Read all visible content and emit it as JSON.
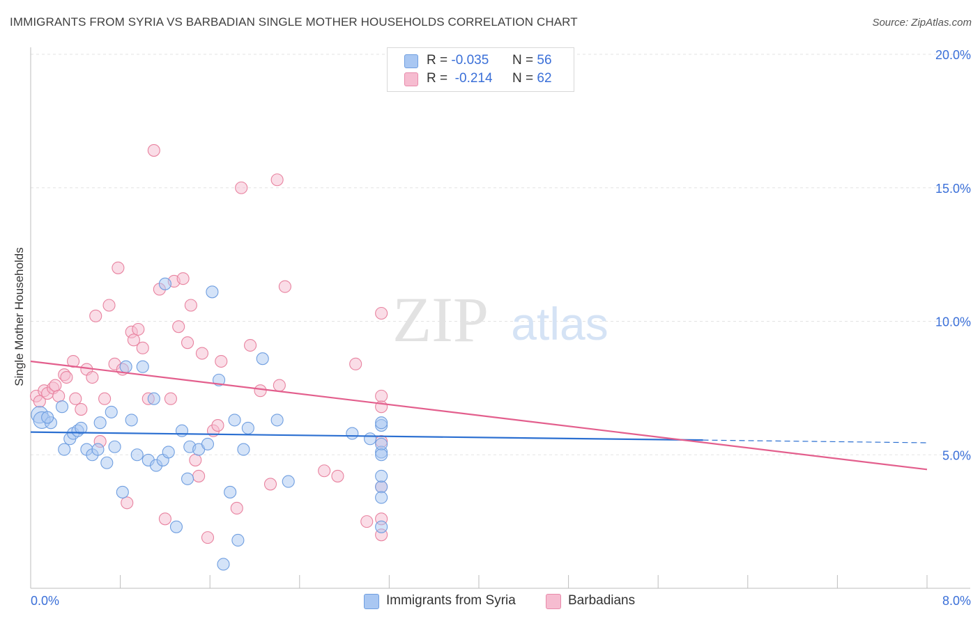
{
  "title": "IMMIGRANTS FROM SYRIA VS BARBADIAN SINGLE MOTHER HOUSEHOLDS CORRELATION CHART",
  "source": "Source: ZipAtlas.com",
  "watermark": {
    "zip": "ZIP",
    "atlas": "atlas"
  },
  "legend": {
    "rows": [
      {
        "r_label": "R =",
        "r_value": "-0.035",
        "n_label": "N =",
        "n_value": "56",
        "color": "#a9c7f2",
        "stroke": "#6f9ee0"
      },
      {
        "r_label": "R =",
        "r_value": "-0.214",
        "n_label": "N =",
        "n_value": "62",
        "color": "#f6bcd0",
        "stroke": "#e88aaa"
      }
    ]
  },
  "colors": {
    "syria": "#6f9ee0",
    "syria_fill": "#a9c7f2",
    "barb": "#e8829f",
    "barb_fill": "#f6bcd0",
    "syria_line": "#2b6fd1",
    "barb_line": "#e35f8d",
    "tick_text": "#3a6fd8"
  },
  "chart_data": {
    "type": "scatter",
    "title": "IMMIGRANTS FROM SYRIA VS BARBADIAN SINGLE MOTHER HOUSEHOLDS CORRELATION CHART",
    "xlabel": "",
    "ylabel": "Single Mother Households",
    "xlim": [
      0,
      8
    ],
    "ylim": [
      0,
      20
    ],
    "x_tick_labels": [
      "0.0%",
      "8.0%"
    ],
    "y_ticks": [
      5,
      10,
      15,
      20
    ],
    "y_tick_labels": [
      "5.0%",
      "10.0%",
      "15.0%",
      "20.0%"
    ],
    "grid": true,
    "series": [
      {
        "name": "Immigrants from Syria",
        "trend": {
          "x": [
            0,
            6.0,
            8.0
          ],
          "y": [
            5.85,
            5.55,
            5.45
          ],
          "dashed_from": 6.0
        },
        "points": [
          [
            0.08,
            6.5
          ],
          [
            0.1,
            6.3
          ],
          [
            0.18,
            6.2
          ],
          [
            0.15,
            6.4
          ],
          [
            0.28,
            6.8
          ],
          [
            0.3,
            5.2
          ],
          [
            0.35,
            5.6
          ],
          [
            0.38,
            5.8
          ],
          [
            0.42,
            5.9
          ],
          [
            0.45,
            6.0
          ],
          [
            0.5,
            5.2
          ],
          [
            0.55,
            5.0
          ],
          [
            0.6,
            5.2
          ],
          [
            0.62,
            6.2
          ],
          [
            0.68,
            4.7
          ],
          [
            0.72,
            6.6
          ],
          [
            0.75,
            5.3
          ],
          [
            0.82,
            3.6
          ],
          [
            0.85,
            8.3
          ],
          [
            0.9,
            6.3
          ],
          [
            0.95,
            5.0
          ],
          [
            1.0,
            8.3
          ],
          [
            1.05,
            4.8
          ],
          [
            1.1,
            7.1
          ],
          [
            1.12,
            4.6
          ],
          [
            1.18,
            4.8
          ],
          [
            1.2,
            11.4
          ],
          [
            1.23,
            5.1
          ],
          [
            1.3,
            2.3
          ],
          [
            1.35,
            5.9
          ],
          [
            1.4,
            4.1
          ],
          [
            1.42,
            5.3
          ],
          [
            1.5,
            5.2
          ],
          [
            1.58,
            5.4
          ],
          [
            1.62,
            11.1
          ],
          [
            1.68,
            7.8
          ],
          [
            1.72,
            0.9
          ],
          [
            1.78,
            3.6
          ],
          [
            1.82,
            6.3
          ],
          [
            1.85,
            1.8
          ],
          [
            1.9,
            5.2
          ],
          [
            1.94,
            6.0
          ],
          [
            2.07,
            8.6
          ],
          [
            2.2,
            6.3
          ],
          [
            2.3,
            4.0
          ],
          [
            2.87,
            5.8
          ],
          [
            3.03,
            5.6
          ],
          [
            3.13,
            3.8
          ],
          [
            3.13,
            2.3
          ],
          [
            3.13,
            5.1
          ],
          [
            3.13,
            4.2
          ],
          [
            3.13,
            6.1
          ],
          [
            3.13,
            5.4
          ],
          [
            3.13,
            3.4
          ],
          [
            3.13,
            6.2
          ],
          [
            3.13,
            5.0
          ]
        ]
      },
      {
        "name": "Barbadians",
        "trend": {
          "x": [
            0,
            8.0
          ],
          "y": [
            8.5,
            4.45
          ]
        },
        "points": [
          [
            0.05,
            7.2
          ],
          [
            0.08,
            7.0
          ],
          [
            0.12,
            7.4
          ],
          [
            0.15,
            7.3
          ],
          [
            0.2,
            7.5
          ],
          [
            0.22,
            7.6
          ],
          [
            0.25,
            7.2
          ],
          [
            0.3,
            8.0
          ],
          [
            0.32,
            7.9
          ],
          [
            0.38,
            8.5
          ],
          [
            0.4,
            7.1
          ],
          [
            0.45,
            6.7
          ],
          [
            0.5,
            8.2
          ],
          [
            0.55,
            7.9
          ],
          [
            0.58,
            10.2
          ],
          [
            0.62,
            5.5
          ],
          [
            0.66,
            7.1
          ],
          [
            0.7,
            10.6
          ],
          [
            0.75,
            8.4
          ],
          [
            0.78,
            12.0
          ],
          [
            0.82,
            8.2
          ],
          [
            0.86,
            3.2
          ],
          [
            0.9,
            9.6
          ],
          [
            0.92,
            9.3
          ],
          [
            0.96,
            9.7
          ],
          [
            1.0,
            9.0
          ],
          [
            1.05,
            7.1
          ],
          [
            1.1,
            16.4
          ],
          [
            1.15,
            11.2
          ],
          [
            1.2,
            2.6
          ],
          [
            1.25,
            7.1
          ],
          [
            1.28,
            11.5
          ],
          [
            1.32,
            9.8
          ],
          [
            1.36,
            11.6
          ],
          [
            1.4,
            9.2
          ],
          [
            1.43,
            10.6
          ],
          [
            1.47,
            4.8
          ],
          [
            1.5,
            4.2
          ],
          [
            1.53,
            8.8
          ],
          [
            1.58,
            1.9
          ],
          [
            1.63,
            5.9
          ],
          [
            1.67,
            6.1
          ],
          [
            1.7,
            8.5
          ],
          [
            1.84,
            3.0
          ],
          [
            1.88,
            15.0
          ],
          [
            1.96,
            9.1
          ],
          [
            2.05,
            7.4
          ],
          [
            2.14,
            3.9
          ],
          [
            2.2,
            15.3
          ],
          [
            2.22,
            7.6
          ],
          [
            2.27,
            11.3
          ],
          [
            2.62,
            4.4
          ],
          [
            2.74,
            4.2
          ],
          [
            2.9,
            8.4
          ],
          [
            3.0,
            2.5
          ],
          [
            3.13,
            10.3
          ],
          [
            3.13,
            6.8
          ],
          [
            3.13,
            7.2
          ],
          [
            3.13,
            2.0
          ],
          [
            3.13,
            5.5
          ],
          [
            3.13,
            3.8
          ],
          [
            3.13,
            2.6
          ]
        ]
      }
    ]
  },
  "bottom_legend": [
    {
      "label": "Immigrants from Syria"
    },
    {
      "label": "Barbadians"
    }
  ]
}
